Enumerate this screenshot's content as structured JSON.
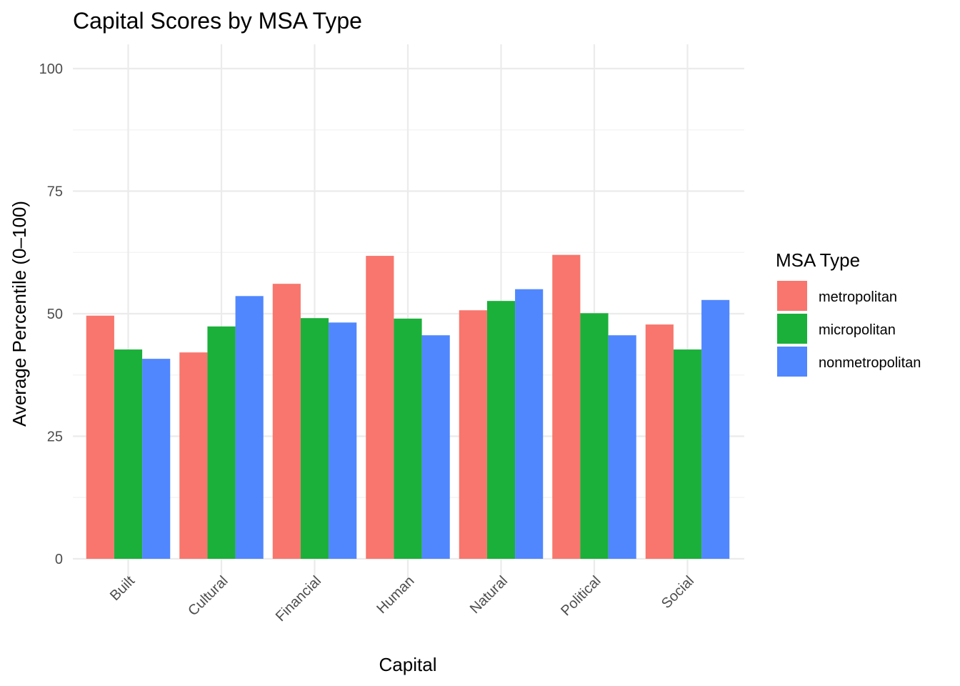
{
  "chart_data": {
    "type": "bar",
    "title": "Capital Scores by MSA Type",
    "xlabel": "Capital",
    "ylabel": "Average Percentile (0–100)",
    "ylim": [
      0,
      100
    ],
    "yticks": [
      0,
      25,
      50,
      75,
      100
    ],
    "grid": true,
    "legend": {
      "title": "MSA Type",
      "position": "right"
    },
    "categories": [
      "Built",
      "Cultural",
      "Financial",
      "Human",
      "Natural",
      "Political",
      "Social"
    ],
    "series": [
      {
        "name": "metropolitan",
        "color": "#F8766D",
        "values": [
          49.6,
          42.1,
          56.1,
          61.8,
          50.7,
          62.0,
          47.8
        ]
      },
      {
        "name": "micropolitan",
        "color": "#1BB03A",
        "values": [
          42.7,
          47.4,
          49.1,
          49.0,
          52.6,
          50.1,
          42.7
        ]
      },
      {
        "name": "nonmetropolitan",
        "color": "#5087FF",
        "values": [
          40.8,
          53.6,
          48.2,
          45.6,
          55.0,
          45.6,
          52.8
        ]
      }
    ]
  }
}
